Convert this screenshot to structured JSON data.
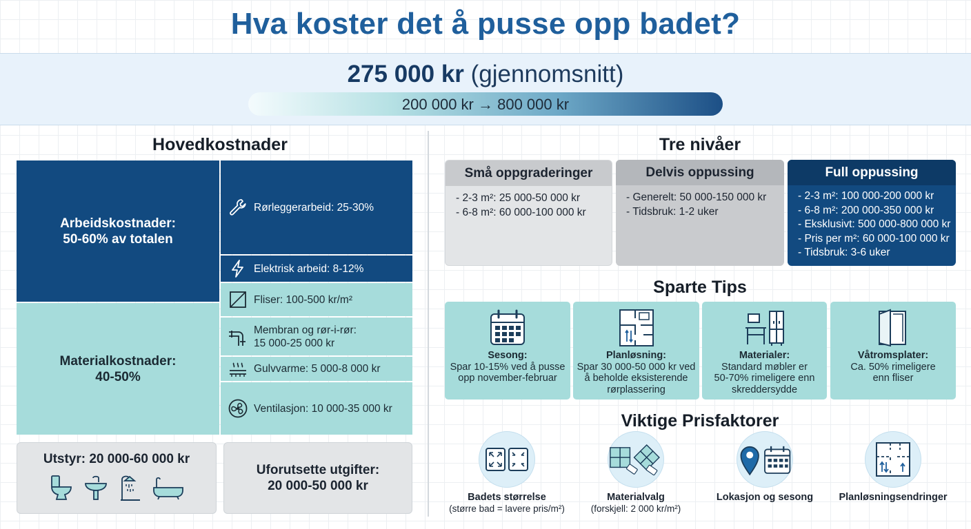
{
  "title": "Hva koster det å pusse opp badet?",
  "summary": {
    "average_value": "275 000 kr",
    "average_note": "(gjennomsnitt)",
    "range": "200 000 kr → 800 000 kr"
  },
  "main_costs": {
    "heading": "Hovedkostnader",
    "labor": {
      "label": "Arbeidskostnader:",
      "share": "50-60% av totalen"
    },
    "material": {
      "label": "Materialkostnader:",
      "share": "40-50%"
    },
    "items": [
      {
        "text": "Rørleggerarbeid: 25-30%",
        "icon": "wrench-icon"
      },
      {
        "text": "Elektrisk arbeid: 8-12%",
        "icon": "lightning-icon"
      },
      {
        "text": "Fliser: 100-500 kr/m²",
        "icon": "tile-icon"
      },
      {
        "text": "Membran og rør-i-rør:",
        "text2": "15 000-25 000 kr",
        "icon": "pipe-icon"
      },
      {
        "text": "Gulvvarme: 5 000-8 000 kr",
        "icon": "floor-heating-icon"
      },
      {
        "text": "Ventilasjon: 10 000-35 000 kr",
        "icon": "fan-icon"
      }
    ],
    "equipment": {
      "label": "Utstyr: 20 000-60 000 kr",
      "icons": [
        "toilet-icon",
        "sink-icon",
        "shower-icon",
        "bathtub-icon"
      ]
    },
    "unforeseen": {
      "label": "Uforutsette utgifter:",
      "value": "20 000-50 000 kr"
    }
  },
  "levels": {
    "heading": "Tre nivåer",
    "tiers": [
      {
        "title": "Små oppgraderinger",
        "lines": [
          "- 2-3 m²: 25 000-50 000 kr",
          "- 6-8 m²: 60 000-100 000 kr"
        ]
      },
      {
        "title": "Delvis oppussing",
        "lines": [
          "- Generelt: 50 000-150 000 kr",
          "- Tidsbruk: 1-2 uker"
        ]
      },
      {
        "title": "Full oppussing",
        "lines": [
          "- 2-3 m²: 100 000-200 000 kr",
          "- 6-8 m²: 200 000-350 000 kr",
          "- Eksklusivt: 500 000-800 000 kr",
          "- Pris per m²: 60 000-100 000 kr",
          "- Tidsbruk: 3-6 uker"
        ]
      }
    ],
    "colors": {
      "light": "#e3e5e7",
      "mid": "#c8cacd",
      "dark": "#124a80"
    }
  },
  "tips": {
    "heading": "Sparte Tips",
    "items": [
      {
        "title": "Sesong:",
        "lines": [
          "Spar 10-15% ved å pusse",
          "opp november-februar"
        ],
        "icon": "calendar-icon"
      },
      {
        "title": "Planløsning:",
        "lines": [
          "Spar 30 000-50 000 kr ved",
          "å beholde eksisterende",
          "rørplassering"
        ],
        "icon": "floorplan-icon"
      },
      {
        "title": "Materialer:",
        "lines": [
          "Standard møbler er",
          "50-70% rimeligere enn",
          "skreddersydde"
        ],
        "icon": "furniture-icon"
      },
      {
        "title": "Våtromsplater:",
        "lines": [
          "Ca. 50% rimeligere",
          "enn fliser"
        ],
        "icon": "wall-panel-icon"
      }
    ]
  },
  "factors": {
    "heading": "Viktige Prisfaktorer",
    "items": [
      {
        "label": "Badets størrelse",
        "sub": "(større bad = lavere pris/m²)",
        "icon": "size-arrows-icon"
      },
      {
        "label": "Materialvalg",
        "sub": "(forskjell: 2 000 kr/m²)",
        "icon": "tiles-price-icon"
      },
      {
        "label": "Lokasjon og sesong",
        "sub": "",
        "icon": "location-calendar-icon"
      },
      {
        "label": "Planløsningsendringer",
        "sub": "",
        "icon": "floorplan-arrows-icon"
      }
    ]
  },
  "colors": {
    "accent": "#1f5f9c",
    "dark_blue": "#124a80",
    "teal": "#a6dcdb",
    "grey": "#e3e5e7"
  }
}
